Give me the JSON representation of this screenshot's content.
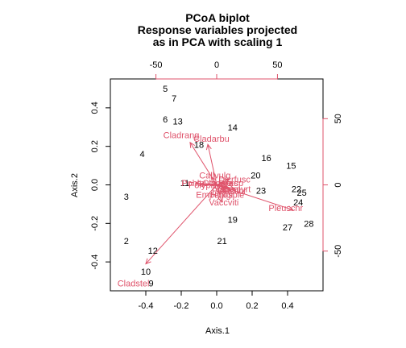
{
  "chart_data": {
    "type": "scatter",
    "title": [
      "PCoA biplot",
      "Response variables projected",
      "as in PCA with scaling 1"
    ],
    "xlabel": "Axis.1",
    "ylabel": "Axis.2",
    "xlim": [
      -0.6,
      0.6
    ],
    "ylim": [
      -0.55,
      0.55
    ],
    "xticks": [
      -0.4,
      -0.2,
      0.0,
      0.2,
      0.4
    ],
    "yticks": [
      -0.4,
      -0.2,
      0.0,
      0.2,
      0.4
    ],
    "top_axis": {
      "lim": [
        -87.5,
        87.5
      ],
      "ticks": [
        -50,
        0,
        50
      ]
    },
    "right_axis": {
      "lim": [
        -80,
        80
      ],
      "ticks": [
        -50,
        0,
        50
      ]
    },
    "arrow_color": "#DF536B",
    "sites": [
      {
        "label": "2",
        "x": -0.51,
        "y": -0.29
      },
      {
        "label": "3",
        "x": -0.51,
        "y": -0.06
      },
      {
        "label": "4",
        "x": -0.42,
        "y": 0.16
      },
      {
        "label": "5",
        "x": -0.29,
        "y": 0.5
      },
      {
        "label": "6",
        "x": -0.29,
        "y": 0.34
      },
      {
        "label": "7",
        "x": -0.24,
        "y": 0.45
      },
      {
        "label": "9",
        "x": -0.37,
        "y": -0.51
      },
      {
        "label": "10",
        "x": -0.4,
        "y": -0.45
      },
      {
        "label": "11",
        "x": -0.18,
        "y": 0.01
      },
      {
        "label": "12",
        "x": -0.36,
        "y": -0.34
      },
      {
        "label": "13",
        "x": -0.22,
        "y": 0.33
      },
      {
        "label": "14",
        "x": 0.09,
        "y": 0.3
      },
      {
        "label": "15",
        "x": 0.42,
        "y": 0.1
      },
      {
        "label": "16",
        "x": 0.28,
        "y": 0.14
      },
      {
        "label": "18",
        "x": -0.1,
        "y": 0.21
      },
      {
        "label": "19",
        "x": 0.09,
        "y": -0.18
      },
      {
        "label": "20",
        "x": 0.22,
        "y": 0.05
      },
      {
        "label": "21",
        "x": 0.03,
        "y": -0.29
      },
      {
        "label": "22",
        "x": 0.45,
        "y": -0.02
      },
      {
        "label": "23",
        "x": 0.25,
        "y": -0.03
      },
      {
        "label": "24",
        "x": 0.46,
        "y": -0.09
      },
      {
        "label": "25",
        "x": 0.48,
        "y": -0.04
      },
      {
        "label": "27",
        "x": 0.4,
        "y": -0.22
      },
      {
        "label": "28",
        "x": 0.52,
        "y": -0.2
      }
    ],
    "species": [
      {
        "label": "Cladstel",
        "x": -0.4,
        "y": -0.41,
        "lx": -0.47,
        "ly": -0.51
      },
      {
        "label": "Cladrang",
        "x": -0.15,
        "y": 0.22,
        "lx": -0.2,
        "ly": 0.26
      },
      {
        "label": "Cladarbu",
        "x": -0.05,
        "y": 0.21,
        "lx": -0.03,
        "ly": 0.24
      },
      {
        "label": "Pleuschr",
        "x": 0.43,
        "y": -0.13,
        "lx": 0.39,
        "ly": -0.12
      },
      {
        "label": "Callvulg",
        "x": -0.03,
        "y": 0.04,
        "lx": -0.01,
        "ly": 0.05
      },
      {
        "label": "Dicrfusc",
        "x": 0.07,
        "y": 0.03,
        "lx": 0.1,
        "ly": 0.03
      },
      {
        "label": "Empenigr",
        "x": 0.02,
        "y": -0.05,
        "lx": -0.01,
        "ly": -0.05
      },
      {
        "label": "Vaccviti",
        "x": 0.03,
        "y": -0.09,
        "lx": 0.04,
        "ly": -0.09
      },
      {
        "label": "Pleuschr",
        "x": 0.06,
        "y": -0.01,
        "lx": 0.07,
        "ly": -0.03
      },
      {
        "label": "Cladgrac",
        "x": 0.04,
        "y": 0.01,
        "lx": 0.02,
        "ly": 0.01
      },
      {
        "label": "Hylosple",
        "x": 0.05,
        "y": -0.04,
        "lx": 0.06,
        "ly": -0.05
      },
      {
        "label": "Polypili",
        "x": -0.1,
        "y": 0.0,
        "lx": -0.08,
        "ly": 0.0
      },
      {
        "label": "Pohlnuta",
        "x": -0.12,
        "y": 0.01,
        "lx": -0.1,
        "ly": 0.01
      },
      {
        "label": "Dicrsp",
        "x": 0.09,
        "y": 0.01,
        "lx": 0.08,
        "ly": 0.01
      },
      {
        "label": "Vaccmyrt",
        "x": 0.1,
        "y": -0.02,
        "lx": 0.09,
        "ly": -0.02
      },
      {
        "label": "Ptilcili",
        "x": 0.08,
        "y": -0.03,
        "lx": 0.07,
        "ly": -0.03
      }
    ]
  }
}
